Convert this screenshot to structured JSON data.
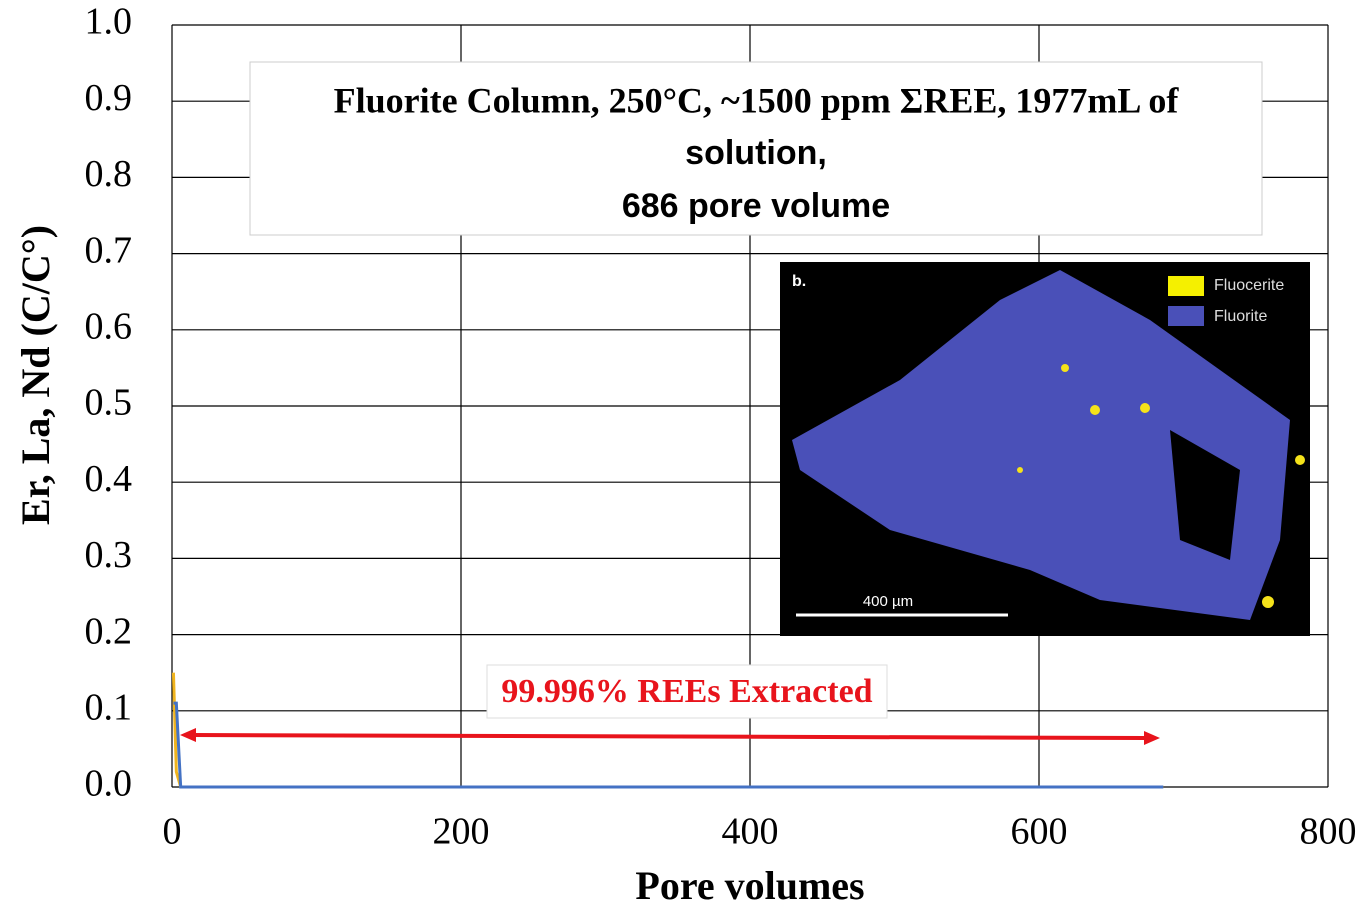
{
  "chart_data": {
    "type": "line",
    "title": [
      "Fluorite Column, 250°C, ~1500 ppm ΣREE, 1977mL of",
      "solution,",
      "686 pore volume"
    ],
    "annotation": "99.996%  REEs Extracted",
    "inset": {
      "panel": "b.",
      "legend": [
        "Fluocerite",
        "Fluorite"
      ],
      "scale_bar": "400 µm"
    },
    "x_label": "Pore volumes",
    "y_label": "Er, La, Nd (C/C°)",
    "x": [
      1,
      3,
      6,
      686
    ],
    "series": [
      {
        "color": "#f0b41e",
        "values": [
          0.15,
          0.02,
          0,
          0
        ]
      },
      {
        "color": "#4472c4",
        "values": [
          0.11,
          0.11,
          0,
          0
        ]
      }
    ],
    "xlim": [
      0,
      800
    ],
    "xticks": [
      0,
      200,
      400,
      600,
      800
    ],
    "ylim": [
      0,
      1
    ],
    "yticks": [
      {
        "value": 0,
        "label": "0.0"
      },
      {
        "value": 0.1,
        "label": "0.1"
      },
      {
        "value": 0.2,
        "label": "0.2"
      },
      {
        "value": 0.3,
        "label": "0.3"
      },
      {
        "value": 0.4,
        "label": "0.4"
      },
      {
        "value": 0.5,
        "label": "0.5"
      },
      {
        "value": 0.6,
        "label": "0.6"
      },
      {
        "value": 0.7,
        "label": "0.7"
      },
      {
        "value": 0.8,
        "label": "0.8"
      },
      {
        "value": 0.9,
        "label": "0.9"
      },
      {
        "value": 1,
        "label": "1.0"
      }
    ],
    "grid": true
  }
}
